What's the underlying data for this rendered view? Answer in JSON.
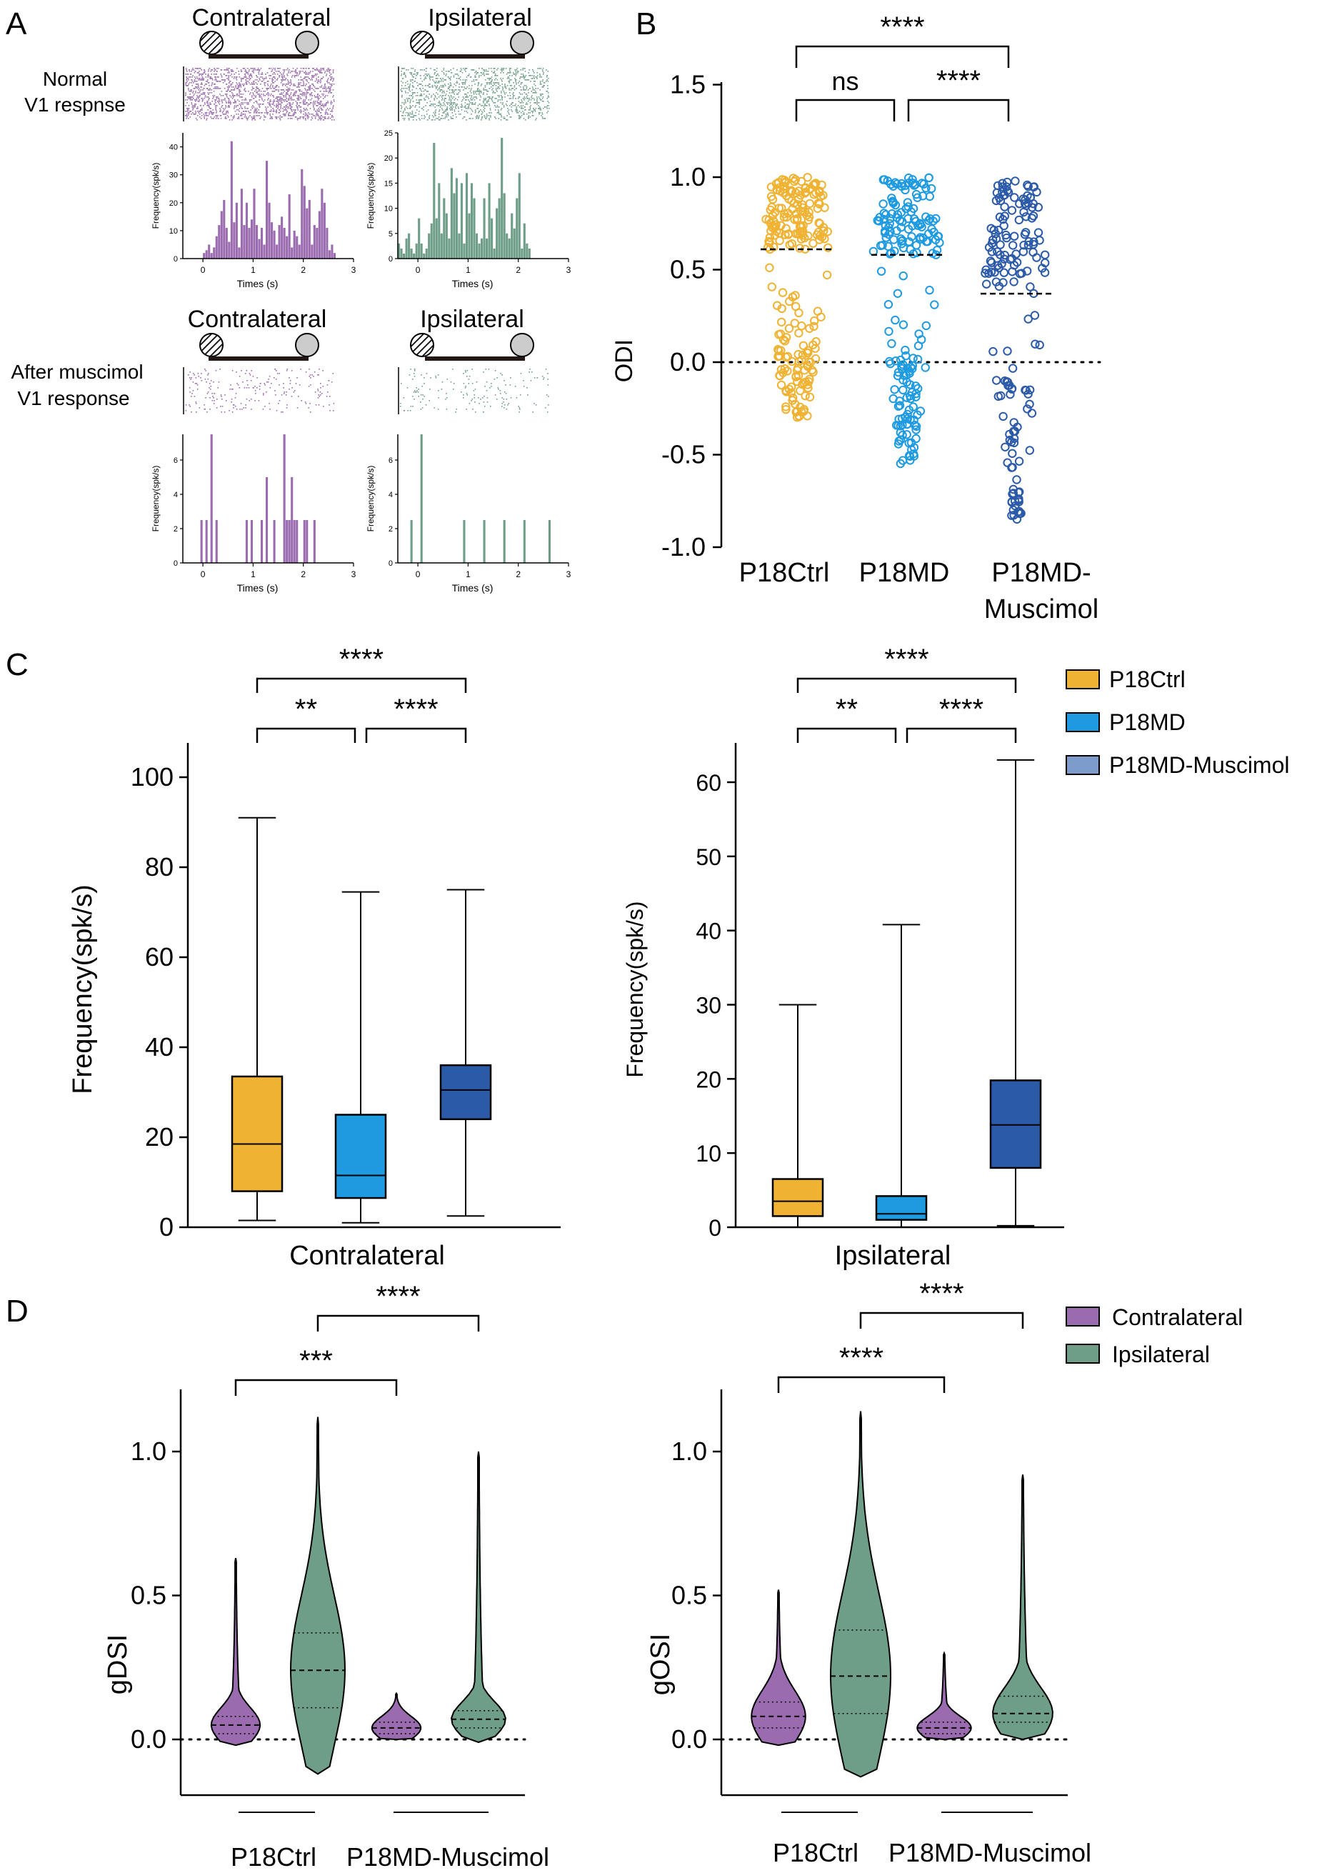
{
  "colors": {
    "ctrl": "#F0B232",
    "md": "#1E9AE0",
    "mus": "#2B5AA8",
    "contra": "#9B6BB0",
    "ipsi": "#6E9E88",
    "bar": "#231815",
    "grayball": "#CCCCCC"
  },
  "panelA": {
    "letter": "A",
    "row1_label": [
      "Normal",
      "V1 respnse"
    ],
    "row2_label": [
      "After muscimol",
      "V1 response"
    ],
    "col_titles": [
      "Contralateral",
      "Ipsilateral",
      "Contralateral",
      "Ipsilateral"
    ],
    "ylabel": "Frequency(spk/s)",
    "xlabel": "Times (s)",
    "xticks": [
      "0",
      "1",
      "2",
      "3"
    ]
  },
  "panelB": {
    "letter": "B",
    "ylabel": "ODI",
    "yticks": [
      "1.5",
      "1.0",
      "0.5",
      "0.0",
      "-0.5",
      "-1.0"
    ],
    "sig": [
      "****",
      "ns",
      "****"
    ]
  },
  "panelC": {
    "letter": "C",
    "ylabel": "Frequency(spk/s)",
    "left_xlabel": "Contralateral",
    "right_xlabel": "Ipsilateral",
    "left_yticks": [
      "0",
      "20",
      "40",
      "60",
      "80",
      "100"
    ],
    "right_yticks": [
      "0",
      "10",
      "20",
      "30",
      "40",
      "50",
      "60"
    ],
    "sig": [
      "****",
      "**",
      "****"
    ],
    "legend": [
      "P18Ctrl",
      "P18MD",
      "P18MD-Muscimol"
    ]
  },
  "panelD": {
    "letter": "D",
    "left_ylabel": "gDSI",
    "right_ylabel": "gOSI",
    "yticks": [
      "0.0",
      "0.5",
      "1.0"
    ],
    "left_sig": [
      "****",
      "***"
    ],
    "right_sig": [
      "****",
      "****"
    ],
    "groups": [
      "P18Ctrl",
      "P18MD-Muscimol"
    ],
    "legend": [
      "Contralateral",
      "Ipsilateral"
    ]
  },
  "chart_data": [
    {
      "type": "bar",
      "panel": "A",
      "title": "Normal V1 respnse - Contralateral (PSTH)",
      "xlabel": "Times (s)",
      "ylabel": "Frequency(spk/s)",
      "xlim": [
        -0.4,
        3
      ],
      "ylim": [
        0,
        45
      ],
      "bin_width": 0.05,
      "x_start": -0.4,
      "values": [
        0,
        0,
        0,
        0,
        0,
        0,
        0,
        0,
        2,
        3,
        5,
        2,
        4,
        8,
        12,
        17,
        21,
        11,
        6,
        42,
        13,
        20,
        4,
        25,
        12,
        20,
        11,
        14,
        25,
        12,
        7,
        11,
        5,
        35,
        20,
        13,
        10,
        5,
        12,
        15,
        11,
        8,
        23,
        4,
        10,
        8,
        5,
        32,
        26,
        18,
        21,
        5,
        12,
        11,
        17,
        25,
        20,
        11,
        3,
        5,
        2,
        0,
        0,
        0,
        0,
        0,
        0,
        0
      ]
    },
    {
      "type": "bar",
      "panel": "A",
      "title": "Normal V1 respnse - Ipsilateral (PSTH)",
      "xlabel": "Times (s)",
      "ylabel": "Frequency(spk/s)",
      "xlim": [
        -0.4,
        3
      ],
      "ylim": [
        0,
        25
      ],
      "bin_width": 0.05,
      "x_start": -0.4,
      "values": [
        3,
        2,
        1,
        4,
        5,
        2,
        1,
        3,
        8,
        3,
        1,
        2,
        5,
        7,
        23,
        8,
        15,
        5,
        12,
        9,
        4,
        18,
        13,
        16,
        5,
        15,
        3,
        17,
        9,
        15,
        12,
        5,
        3,
        4,
        12,
        4,
        15,
        8,
        2,
        10,
        12,
        24,
        13,
        5,
        4,
        9,
        6,
        12,
        17,
        2,
        7,
        3,
        2,
        0,
        0,
        0,
        0,
        0,
        0,
        0,
        0,
        0,
        0,
        0,
        0,
        0,
        0,
        0
      ]
    },
    {
      "type": "bar",
      "panel": "A",
      "title": "After muscimol V1 response - Contralateral (PSTH)",
      "xlabel": "Times (s)",
      "ylabel": "Frequency(spk/s)",
      "xlim": [
        -0.4,
        3
      ],
      "ylim": [
        0,
        7.5
      ],
      "bin_width": 0.05,
      "x_start": -0.4,
      "values": [
        0,
        0,
        0,
        0,
        0,
        0,
        0,
        2.5,
        0,
        2.5,
        0,
        7.5,
        0,
        2.5,
        0,
        0,
        0,
        0,
        0,
        0,
        0,
        0,
        0,
        0,
        0,
        2.5,
        0,
        2.5,
        0,
        0,
        0,
        2.5,
        0,
        5,
        0,
        0,
        2.5,
        0,
        0,
        0,
        7.5,
        2.5,
        2.5,
        5,
        2.5,
        2.5,
        0,
        0,
        2.5,
        2.5,
        0,
        0,
        2.5,
        0,
        0,
        0,
        0,
        0,
        0,
        0,
        0,
        0,
        0,
        0,
        0,
        0,
        0,
        0
      ]
    },
    {
      "type": "bar",
      "panel": "A",
      "title": "After muscimol V1 response - Ipsilateral (PSTH)",
      "xlabel": "Times (s)",
      "ylabel": "Frequency(spk/s)",
      "xlim": [
        -0.4,
        3
      ],
      "ylim": [
        0,
        7.5
      ],
      "bin_width": 0.05,
      "x_start": -0.4,
      "values": [
        0,
        0,
        0,
        0,
        0,
        2.5,
        0,
        0,
        0,
        7.5,
        0,
        0,
        0,
        0,
        0,
        0,
        0,
        0,
        0,
        0,
        0,
        0,
        0,
        0,
        0,
        0,
        2.5,
        0,
        0,
        0,
        0,
        0,
        0,
        0,
        2.5,
        0,
        0,
        0,
        0,
        0,
        0,
        0,
        2.5,
        0,
        0,
        0,
        0,
        0,
        0,
        0,
        2.5,
        0,
        0,
        0,
        0,
        0,
        0,
        0,
        0,
        0,
        2.5,
        0,
        0,
        0,
        0,
        0,
        0,
        0
      ]
    },
    {
      "type": "scatter",
      "panel": "B",
      "title": "",
      "xlabel": "",
      "ylabel": "ODI",
      "ylim": [
        -1.0,
        1.5
      ],
      "categories": [
        "P18Ctrl",
        "P18MD",
        "P18MD-\nMuscimol"
      ],
      "means": [
        0.61,
        0.58,
        0.37
      ],
      "series": [
        {
          "name": "P18Ctrl",
          "n": 230,
          "median": 0.61,
          "min": -0.3,
          "max": 1.0
        },
        {
          "name": "P18MD",
          "n": 200,
          "median": 0.58,
          "min": -0.55,
          "max": 1.0
        },
        {
          "name": "P18MD-Muscimol",
          "n": 170,
          "median": 0.37,
          "min": -0.85,
          "max": 0.98
        }
      ],
      "comparisons": [
        {
          "pair": [
            "P18Ctrl",
            "P18MD-Muscimol"
          ],
          "label": "****"
        },
        {
          "pair": [
            "P18Ctrl",
            "P18MD"
          ],
          "label": "ns"
        },
        {
          "pair": [
            "P18MD",
            "P18MD-Muscimol"
          ],
          "label": "****"
        }
      ]
    },
    {
      "type": "box",
      "panel": "C",
      "title": "",
      "xlabel": "Contralateral",
      "ylabel": "Frequency(spk/s)",
      "ylim": [
        0,
        105
      ],
      "series": [
        {
          "name": "P18Ctrl",
          "min": 1.5,
          "q1": 8,
          "median": 18.5,
          "q3": 33.5,
          "max": 91
        },
        {
          "name": "P18MD",
          "min": 1,
          "q1": 6.5,
          "median": 11.5,
          "q3": 25,
          "max": 74.5
        },
        {
          "name": "P18MD-Muscimol",
          "min": 2.5,
          "q1": 24,
          "median": 30.5,
          "q3": 36,
          "max": 75
        }
      ],
      "comparisons": [
        {
          "pair": [
            "P18Ctrl",
            "P18MD-Muscimol"
          ],
          "label": "****"
        },
        {
          "pair": [
            "P18Ctrl",
            "P18MD"
          ],
          "label": "**"
        },
        {
          "pair": [
            "P18MD",
            "P18MD-Muscimol"
          ],
          "label": "****"
        }
      ]
    },
    {
      "type": "box",
      "panel": "C",
      "title": "",
      "xlabel": "Ipsilateral",
      "ylabel": "Frequency(spk/s)",
      "ylim": [
        0,
        65
      ],
      "series": [
        {
          "name": "P18Ctrl",
          "min": 0,
          "q1": 1.5,
          "median": 3.5,
          "q3": 6.5,
          "max": 30
        },
        {
          "name": "P18MD",
          "min": 0,
          "q1": 1,
          "median": 1.8,
          "q3": 4.2,
          "max": 40.8
        },
        {
          "name": "P18MD-Muscimol",
          "min": 0.2,
          "q1": 8,
          "median": 13.8,
          "q3": 19.8,
          "max": 63
        }
      ],
      "comparisons": [
        {
          "pair": [
            "P18Ctrl",
            "P18MD-Muscimol"
          ],
          "label": "****"
        },
        {
          "pair": [
            "P18Ctrl",
            "P18MD"
          ],
          "label": "**"
        },
        {
          "pair": [
            "P18MD",
            "P18MD-Muscimol"
          ],
          "label": "****"
        }
      ]
    },
    {
      "type": "violin",
      "panel": "D",
      "title": "",
      "xlabel": "",
      "ylabel": "gDSI",
      "ylim": [
        -0.25,
        1.2
      ],
      "categories": [
        "P18Ctrl",
        "P18MD-Muscimol"
      ],
      "series": [
        {
          "name": "P18Ctrl Contralateral",
          "min": -0.02,
          "q1": 0.02,
          "median": 0.05,
          "q3": 0.08,
          "max": 0.63
        },
        {
          "name": "P18Ctrl Ipsilateral",
          "min": -0.12,
          "q1": 0.11,
          "median": 0.24,
          "q3": 0.37,
          "max": 1.12
        },
        {
          "name": "P18MD-Muscimol Contralateral",
          "min": 0.0,
          "q1": 0.02,
          "median": 0.04,
          "q3": 0.06,
          "max": 0.16
        },
        {
          "name": "P18MD-Muscimol Ipsilateral",
          "min": -0.01,
          "q1": 0.04,
          "median": 0.07,
          "q3": 0.1,
          "max": 1.0
        }
      ]
    },
    {
      "type": "violin",
      "panel": "D",
      "title": "",
      "xlabel": "",
      "ylabel": "gOSI",
      "ylim": [
        -0.25,
        1.2
      ],
      "categories": [
        "P18Ctrl",
        "P18MD-Muscimol"
      ],
      "series": [
        {
          "name": "P18Ctrl Contralateral",
          "min": -0.02,
          "q1": 0.04,
          "median": 0.08,
          "q3": 0.13,
          "max": 0.52
        },
        {
          "name": "P18Ctrl Ipsilateral",
          "min": -0.13,
          "q1": 0.09,
          "median": 0.22,
          "q3": 0.38,
          "max": 1.14
        },
        {
          "name": "P18MD-Muscimol Contralateral",
          "min": 0.0,
          "q1": 0.02,
          "median": 0.04,
          "q3": 0.06,
          "max": 0.3
        },
        {
          "name": "P18MD-Muscimol Ipsilateral",
          "min": 0.0,
          "q1": 0.06,
          "median": 0.09,
          "q3": 0.15,
          "max": 0.92
        }
      ]
    }
  ]
}
